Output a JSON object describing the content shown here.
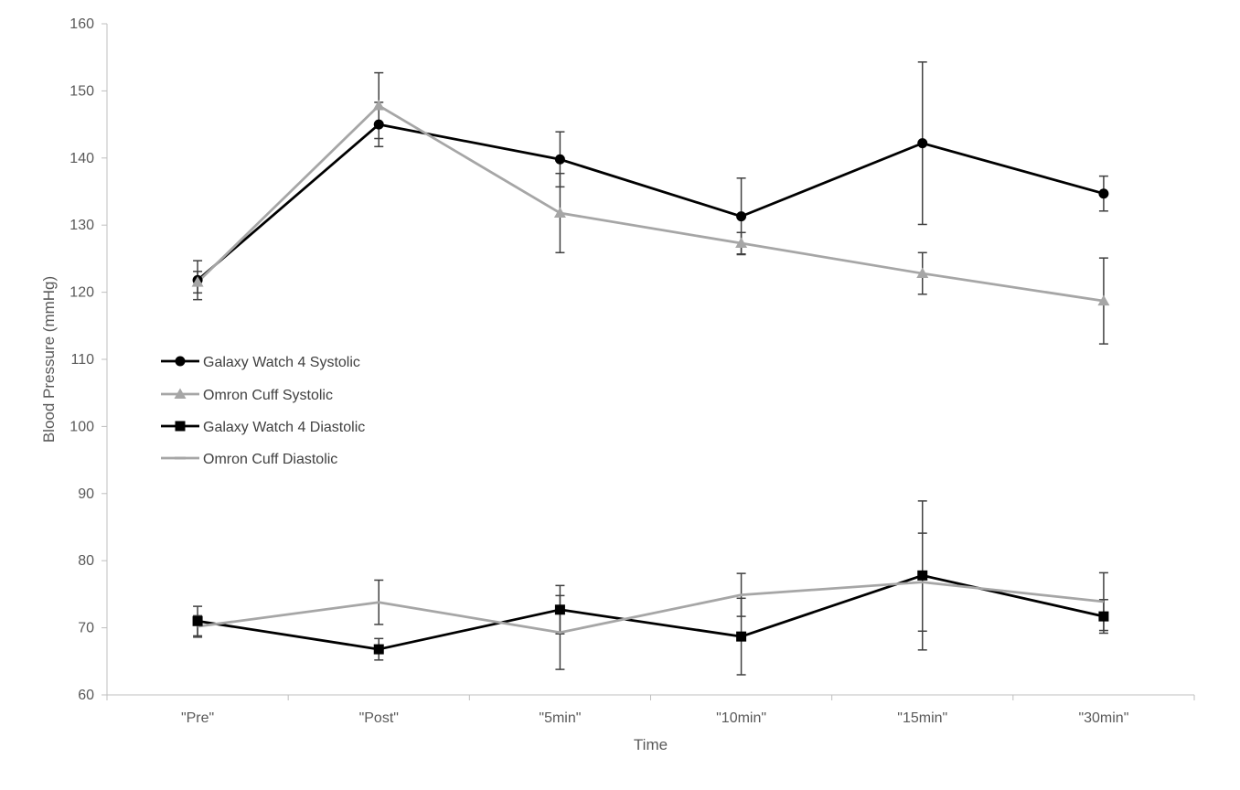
{
  "chart_data": {
    "type": "line",
    "title": "",
    "xlabel": "Time",
    "ylabel": "Blood Pressure (mmHg)",
    "ylim": [
      60,
      160
    ],
    "yticks": [
      60,
      70,
      80,
      90,
      100,
      110,
      120,
      130,
      140,
      150,
      160
    ],
    "categories": [
      "\"Pre\"",
      "\"Post\"",
      "\"5min\"",
      "\"10min\"",
      "\"15min\"",
      "\"30min\""
    ],
    "grid": false,
    "legend_position": "middle-left",
    "series": [
      {
        "name": "Galaxy Watch 4 Systolic",
        "color": "#000000",
        "marker": "circle",
        "values": [
          121.8,
          145.0,
          139.8,
          131.3,
          142.2,
          134.7
        ],
        "err": [
          2.9,
          3.3,
          4.1,
          5.7,
          12.1,
          2.6
        ]
      },
      {
        "name": "Omron Cuff Systolic",
        "color": "#a6a6a6",
        "marker": "triangle",
        "values": [
          121.5,
          147.8,
          131.8,
          127.3,
          122.8,
          118.7
        ],
        "err": [
          1.6,
          4.9,
          5.9,
          1.6,
          3.1,
          6.4
        ]
      },
      {
        "name": "Galaxy Watch 4 Diastolic",
        "color": "#000000",
        "marker": "square",
        "values": [
          71.0,
          66.8,
          72.7,
          68.7,
          77.8,
          71.7
        ],
        "err": [
          2.2,
          1.6,
          3.6,
          5.7,
          11.1,
          2.5
        ]
      },
      {
        "name": "Omron Cuff Diastolic",
        "color": "#a6a6a6",
        "marker": "dash",
        "values": [
          70.2,
          73.8,
          69.3,
          74.9,
          76.8,
          73.9
        ],
        "err": [
          1.6,
          3.3,
          5.5,
          3.2,
          7.3,
          4.3
        ]
      }
    ]
  }
}
